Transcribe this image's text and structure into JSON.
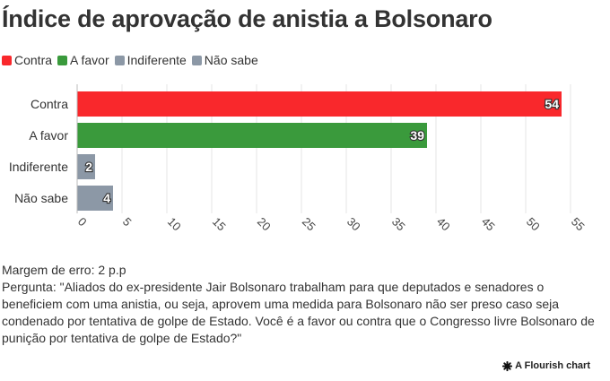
{
  "title": "Índice de aprovação de anistia a Bolsonaro",
  "chart_data": {
    "type": "bar",
    "orientation": "horizontal",
    "categories": [
      "Contra",
      "A favor",
      "Indiferente",
      "Não sabe"
    ],
    "values": [
      54,
      39,
      2,
      4
    ],
    "colors": [
      "#f9282c",
      "#3a9a3c",
      "#8c98a6",
      "#8c98a6"
    ],
    "legend": [
      {
        "label": "Contra",
        "color": "#f9282c"
      },
      {
        "label": "A favor",
        "color": "#3a9a3c"
      },
      {
        "label": "Indiferente",
        "color": "#8c98a6"
      },
      {
        "label": "Não sabe",
        "color": "#8c98a6"
      }
    ],
    "legend_placement": "top-left",
    "x_ticks": [
      0,
      5,
      10,
      15,
      20,
      25,
      30,
      35,
      40,
      45,
      50,
      55
    ],
    "xlim": [
      0,
      55
    ],
    "grid": true,
    "xlabel": "",
    "ylabel": ""
  },
  "notes": {
    "margin": "Margem de erro: 2 p.p",
    "question": "Pergunta: \"Aliados do ex-presidente Jair Bolsonaro trabalham para que deputados e senadores o beneficiem com uma anistia, ou seja, aprovem uma medida para Bolsonaro não ser preso caso seja condenado por tentativa de golpe de Estado. Você é a favor ou contra que o Congresso livre Bolsonaro de punição por tentativa de golpe de Estado?\""
  },
  "credit": "A Flourish chart"
}
